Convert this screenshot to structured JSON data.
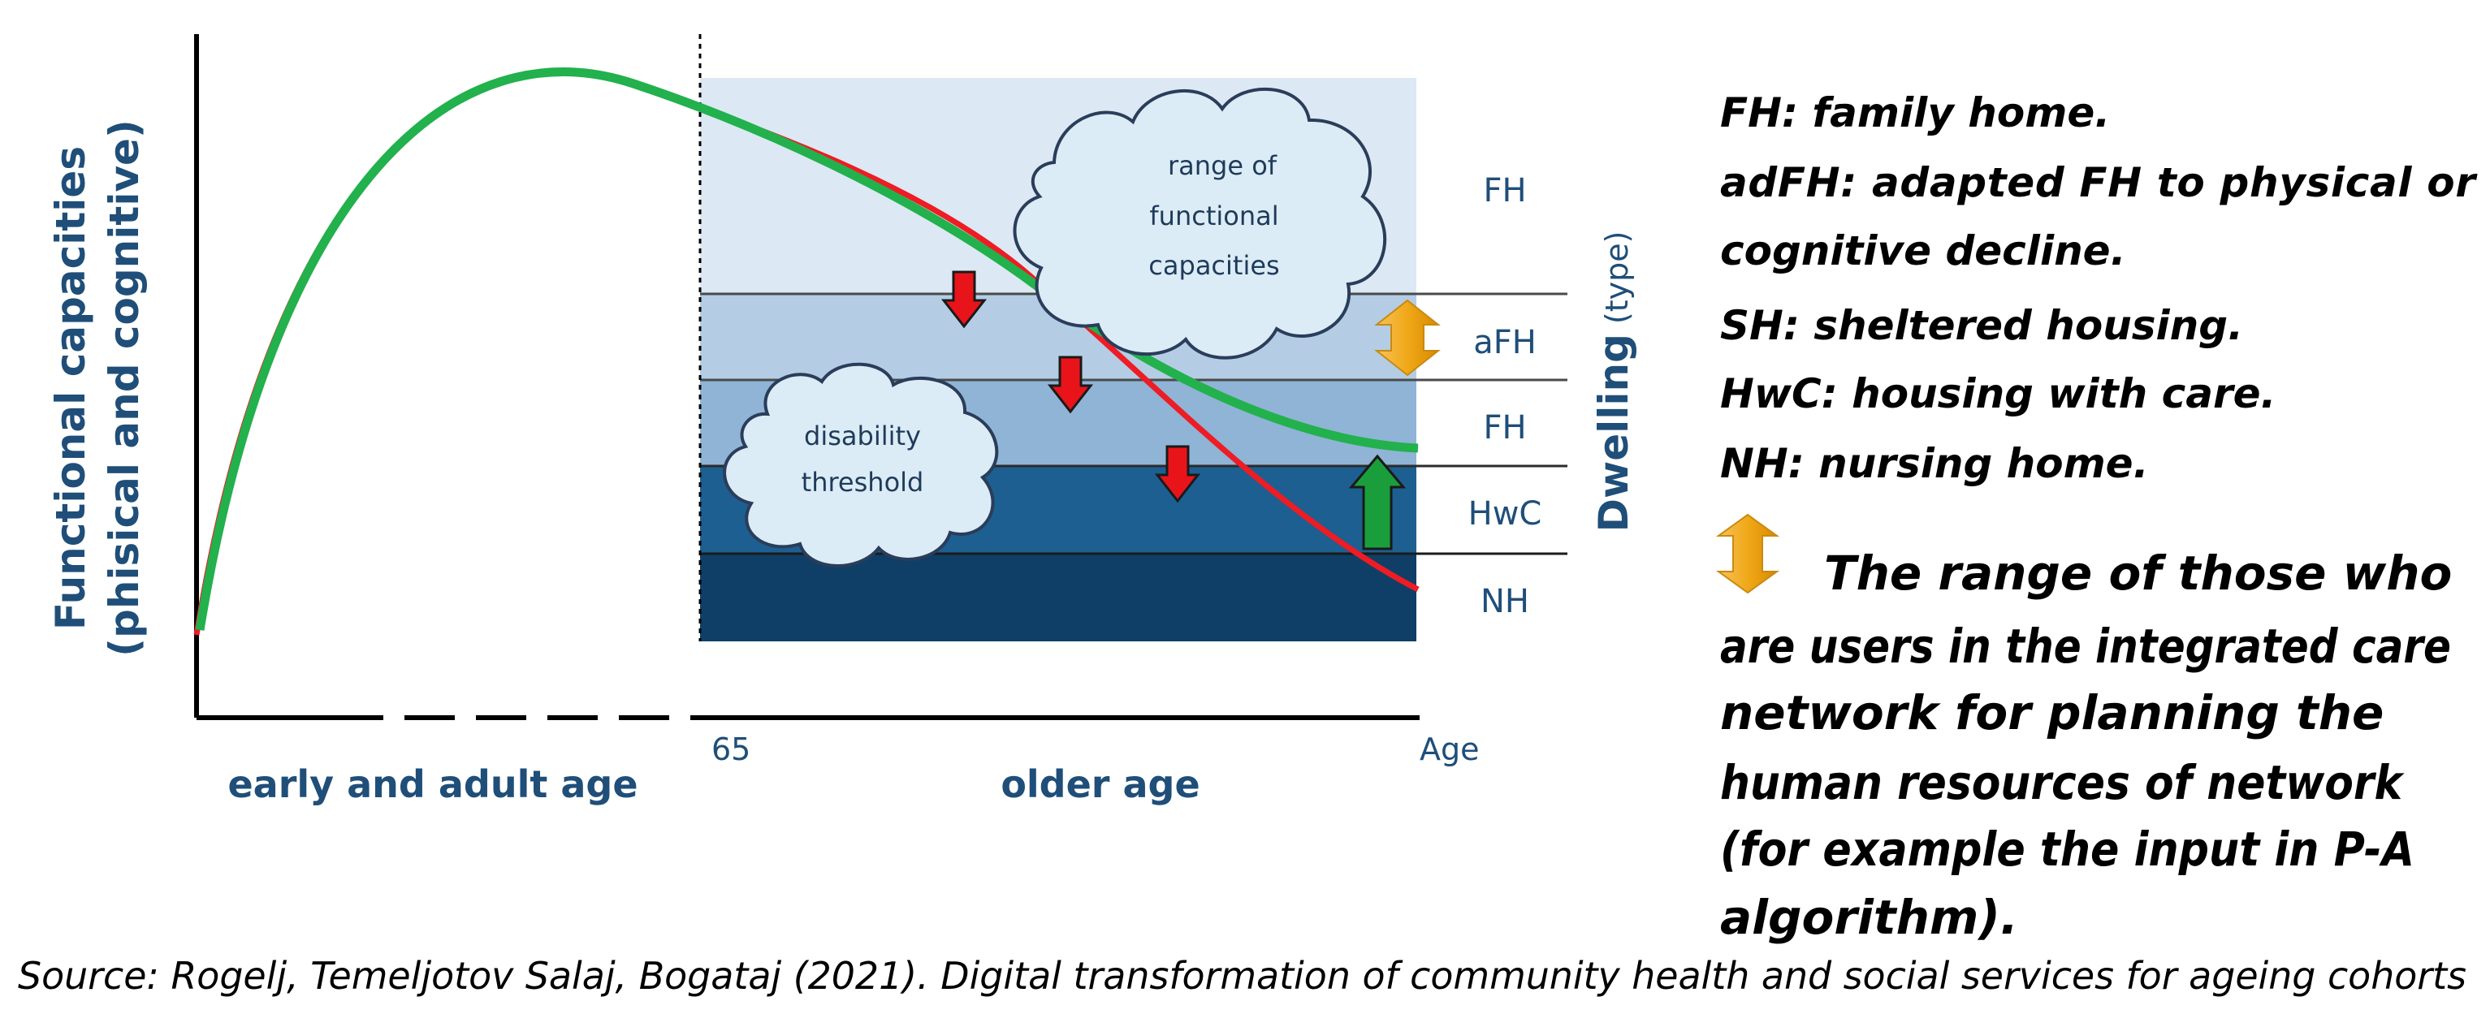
{
  "axes": {
    "y_title_line1": "Functional capacities",
    "y_title_line2": "(phisical and cognitive)",
    "right_title_main": "Dwelling",
    "right_title_sub": "(type)",
    "x_tick_65": "65",
    "x_tick_age": "Age",
    "period_left": "early and adult age",
    "period_right": "older age"
  },
  "bands": [
    "FH",
    "aFH",
    "FH",
    "HwC",
    "NH"
  ],
  "clouds": {
    "range": [
      "range of",
      "functional",
      "capacities"
    ],
    "threshold": [
      "disability",
      "threshold"
    ]
  },
  "legend": [
    "FH: family home.",
    "adFH: adapted FH to physical or",
    "cognitive decline.",
    "SH: sheltered housing.",
    "HwC: housing with care.",
    "NH: nursing home."
  ],
  "range_note": [
    "The range of those who",
    "are users in the integrated care",
    "network for planning the",
    "human resources of network",
    "(for example the input in P-A",
    "algorithm)."
  ],
  "source": "Source: Rogelj, Temeljotov Salaj, Bogataj (2021). Digital transformation of community health and social services for ageing cohorts",
  "colors": {
    "band_fh_top": "#dce8f4",
    "band_afh": "#b4cde4",
    "band_fh_mid": "#8fb4d6",
    "band_hwc": "#1d5f91",
    "band_nh": "#0f3f66",
    "curve_green": "#22b14c",
    "curve_red": "#ee1c24",
    "arrow_down": "#e8141a",
    "arrow_up": "#1a9e3c",
    "arrow_range": "#f0a818",
    "cloud_fill": "#dcecf6",
    "cloud_stroke": "#2a3d5a",
    "text_blue": "#1f4e79"
  },
  "icons": [
    "red-down-arrow-icon",
    "green-up-arrow-icon",
    "orange-double-arrow-icon"
  ]
}
